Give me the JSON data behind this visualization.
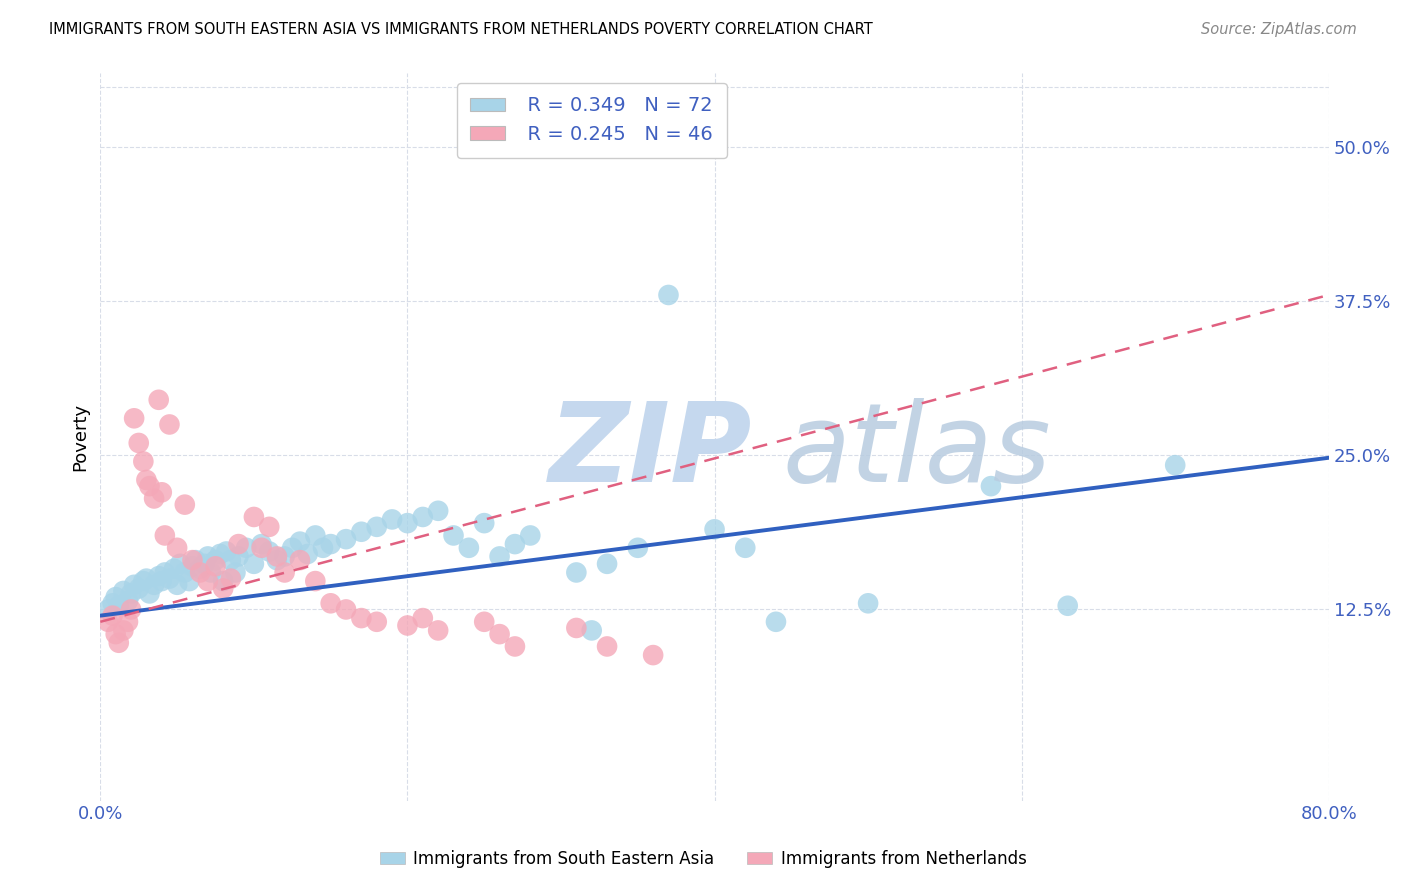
{
  "title": "IMMIGRANTS FROM SOUTH EASTERN ASIA VS IMMIGRANTS FROM NETHERLANDS POVERTY CORRELATION CHART",
  "source": "Source: ZipAtlas.com",
  "ylabel": "Poverty",
  "ytick_values": [
    0.125,
    0.25,
    0.375,
    0.5
  ],
  "ytick_labels": [
    "12.5%",
    "25.0%",
    "37.5%",
    "50.0%"
  ],
  "xlim": [
    0.0,
    0.8
  ],
  "ylim": [
    -0.03,
    0.56
  ],
  "legend_blue_r": "R = 0.349",
  "legend_blue_n": "N = 72",
  "legend_pink_r": "R = 0.245",
  "legend_pink_n": "N = 46",
  "blue_color": "#a8d4e8",
  "pink_color": "#f4a8b8",
  "blue_line_color": "#3060c0",
  "pink_line_color": "#e06080",
  "blue_scatter_x": [
    0.005,
    0.008,
    0.01,
    0.012,
    0.015,
    0.018,
    0.02,
    0.022,
    0.025,
    0.028,
    0.03,
    0.032,
    0.035,
    0.038,
    0.04,
    0.042,
    0.045,
    0.048,
    0.05,
    0.052,
    0.055,
    0.058,
    0.06,
    0.062,
    0.065,
    0.068,
    0.07,
    0.072,
    0.075,
    0.078,
    0.08,
    0.082,
    0.085,
    0.088,
    0.09,
    0.095,
    0.1,
    0.105,
    0.11,
    0.115,
    0.12,
    0.125,
    0.13,
    0.135,
    0.14,
    0.145,
    0.15,
    0.16,
    0.17,
    0.18,
    0.19,
    0.2,
    0.21,
    0.22,
    0.23,
    0.24,
    0.25,
    0.26,
    0.27,
    0.28,
    0.31,
    0.32,
    0.33,
    0.35,
    0.37,
    0.4,
    0.42,
    0.44,
    0.5,
    0.58,
    0.63,
    0.7
  ],
  "blue_scatter_y": [
    0.125,
    0.13,
    0.135,
    0.128,
    0.14,
    0.132,
    0.138,
    0.145,
    0.142,
    0.148,
    0.15,
    0.138,
    0.145,
    0.152,
    0.148,
    0.155,
    0.15,
    0.158,
    0.145,
    0.162,
    0.155,
    0.148,
    0.16,
    0.165,
    0.158,
    0.162,
    0.168,
    0.155,
    0.165,
    0.17,
    0.148,
    0.172,
    0.165,
    0.155,
    0.168,
    0.175,
    0.162,
    0.178,
    0.172,
    0.165,
    0.168,
    0.175,
    0.18,
    0.17,
    0.185,
    0.175,
    0.178,
    0.182,
    0.188,
    0.192,
    0.198,
    0.195,
    0.2,
    0.205,
    0.185,
    0.175,
    0.195,
    0.168,
    0.178,
    0.185,
    0.155,
    0.108,
    0.162,
    0.175,
    0.38,
    0.19,
    0.175,
    0.115,
    0.13,
    0.225,
    0.128,
    0.242
  ],
  "pink_scatter_x": [
    0.005,
    0.008,
    0.01,
    0.012,
    0.015,
    0.018,
    0.02,
    0.022,
    0.025,
    0.028,
    0.03,
    0.032,
    0.035,
    0.038,
    0.04,
    0.042,
    0.045,
    0.05,
    0.055,
    0.06,
    0.065,
    0.07,
    0.075,
    0.08,
    0.085,
    0.09,
    0.1,
    0.105,
    0.11,
    0.115,
    0.12,
    0.13,
    0.14,
    0.15,
    0.16,
    0.17,
    0.18,
    0.2,
    0.21,
    0.22,
    0.25,
    0.26,
    0.27,
    0.31,
    0.33,
    0.36
  ],
  "pink_scatter_y": [
    0.115,
    0.12,
    0.105,
    0.098,
    0.108,
    0.115,
    0.125,
    0.28,
    0.26,
    0.245,
    0.23,
    0.225,
    0.215,
    0.295,
    0.22,
    0.185,
    0.275,
    0.175,
    0.21,
    0.165,
    0.155,
    0.148,
    0.16,
    0.142,
    0.15,
    0.178,
    0.2,
    0.175,
    0.192,
    0.168,
    0.155,
    0.165,
    0.148,
    0.13,
    0.125,
    0.118,
    0.115,
    0.112,
    0.118,
    0.108,
    0.115,
    0.105,
    0.095,
    0.11,
    0.095,
    0.088
  ],
  "blue_trend_x": [
    0.0,
    0.8
  ],
  "blue_trend_y": [
    0.12,
    0.248
  ],
  "pink_trend_x": [
    0.0,
    0.8
  ],
  "pink_trend_y": [
    0.115,
    0.38
  ],
  "grid_color": "#d8dde8",
  "tick_color": "#4060c0"
}
